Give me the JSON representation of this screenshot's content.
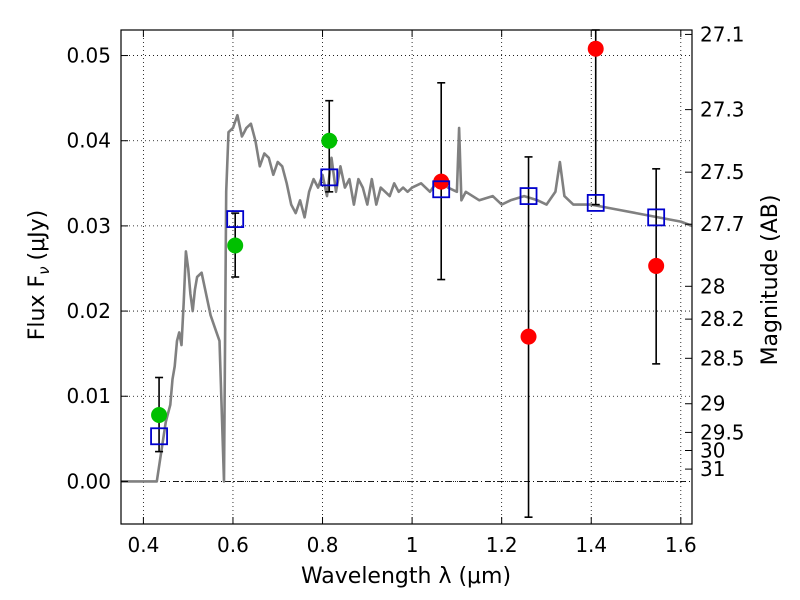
{
  "chart_data": {
    "type": "scatter",
    "xlabel": "Wavelength  λ (μm)",
    "ylabel": "Flux  F",
    "ylabel_sub": "ν",
    "ylabel_unit": "(μJy)",
    "y2label": "Magnitude (AB)",
    "xlim": [
      0.35,
      1.625
    ],
    "ylim": [
      -0.005,
      0.053
    ],
    "grid": true,
    "x_ticks": [
      0.4,
      0.6,
      0.8,
      1.0,
      1.2,
      1.4,
      1.6
    ],
    "x_tick_labels": [
      "0.4",
      "0.6",
      "0.8",
      "1",
      "1.2",
      "1.4",
      "1.6"
    ],
    "y_ticks": [
      0.0,
      0.01,
      0.02,
      0.03,
      0.04,
      0.05
    ],
    "y_tick_labels": [
      "0.00",
      "0.01",
      "0.02",
      "0.03",
      "0.04",
      "0.05"
    ],
    "mag_ticks": [
      27.1,
      27.3,
      27.5,
      27.7,
      28,
      28.2,
      28.5,
      29,
      29.5,
      30,
      31
    ],
    "mag_tick_labels": [
      "27.1",
      "27.3",
      "27.5",
      "27.7",
      "28",
      "28.2",
      "28.5",
      "29",
      "29.5",
      "30",
      "31"
    ],
    "zero_line": 0.0,
    "template_spectrum": {
      "color": "#808080",
      "x": [
        0.35,
        0.43,
        0.44,
        0.45,
        0.46,
        0.465,
        0.47,
        0.475,
        0.48,
        0.485,
        0.49,
        0.495,
        0.5,
        0.505,
        0.51,
        0.515,
        0.52,
        0.53,
        0.54,
        0.55,
        0.56,
        0.57,
        0.58,
        0.585,
        0.59,
        0.6,
        0.61,
        0.62,
        0.625,
        0.63,
        0.64,
        0.65,
        0.66,
        0.67,
        0.68,
        0.69,
        0.7,
        0.71,
        0.72,
        0.73,
        0.74,
        0.75,
        0.76,
        0.77,
        0.78,
        0.79,
        0.8,
        0.81,
        0.82,
        0.83,
        0.84,
        0.85,
        0.86,
        0.87,
        0.88,
        0.89,
        0.9,
        0.91,
        0.92,
        0.93,
        0.94,
        0.95,
        0.96,
        0.97,
        0.98,
        0.99,
        1.0,
        1.02,
        1.04,
        1.06,
        1.08,
        1.1,
        1.105,
        1.11,
        1.12,
        1.15,
        1.18,
        1.2,
        1.22,
        1.25,
        1.28,
        1.3,
        1.32,
        1.33,
        1.34,
        1.36,
        1.4,
        1.45,
        1.5,
        1.55,
        1.6,
        1.625
      ],
      "y": [
        0.0,
        0.0,
        0.0035,
        0.007,
        0.009,
        0.012,
        0.0135,
        0.0165,
        0.0175,
        0.016,
        0.021,
        0.027,
        0.025,
        0.022,
        0.02,
        0.0225,
        0.024,
        0.0245,
        0.022,
        0.0195,
        0.018,
        0.0165,
        0.0,
        0.034,
        0.041,
        0.0415,
        0.043,
        0.0405,
        0.041,
        0.0415,
        0.042,
        0.04,
        0.037,
        0.0385,
        0.038,
        0.036,
        0.0375,
        0.037,
        0.035,
        0.0325,
        0.0315,
        0.033,
        0.031,
        0.034,
        0.0355,
        0.0345,
        0.036,
        0.0335,
        0.038,
        0.034,
        0.037,
        0.0345,
        0.0355,
        0.0325,
        0.0355,
        0.0345,
        0.0325,
        0.0355,
        0.0325,
        0.0345,
        0.034,
        0.0335,
        0.035,
        0.034,
        0.0345,
        0.034,
        0.0345,
        0.035,
        0.034,
        0.0355,
        0.0345,
        0.034,
        0.0415,
        0.033,
        0.034,
        0.033,
        0.0335,
        0.0325,
        0.033,
        0.0335,
        0.033,
        0.0325,
        0.034,
        0.0375,
        0.0335,
        0.0325,
        0.0325,
        0.032,
        0.0315,
        0.031,
        0.0305,
        0.03
      ]
    },
    "series": [
      {
        "marker": "filled-circle",
        "color": "#00c000",
        "x": [
          0.435,
          0.605,
          0.815
        ],
        "y": [
          0.0078,
          0.0277,
          0.04
        ]
      },
      {
        "marker": "filled-circle",
        "color": "#ff0000",
        "x": [
          1.065,
          1.26,
          1.41,
          1.545
        ],
        "y": [
          0.0352,
          0.017,
          0.0508,
          0.0253
        ]
      },
      {
        "marker": "open-square",
        "color": "#0000cc",
        "x": [
          0.435,
          0.605,
          0.815,
          1.065,
          1.26,
          1.41,
          1.545
        ],
        "y": [
          0.0053,
          0.0308,
          0.0357,
          0.0343,
          0.0335,
          0.0327,
          0.031
        ]
      }
    ],
    "error_bars": {
      "color": "#000000",
      "x": [
        0.435,
        0.605,
        0.815,
        1.065,
        1.26,
        1.41,
        1.545
      ],
      "low": [
        0.0035,
        0.024,
        0.034,
        0.0237,
        -0.0042,
        0.0325,
        0.0138
      ],
      "high": [
        0.0122,
        0.0315,
        0.0447,
        0.0468,
        0.0381,
        0.053,
        0.0367
      ]
    }
  }
}
